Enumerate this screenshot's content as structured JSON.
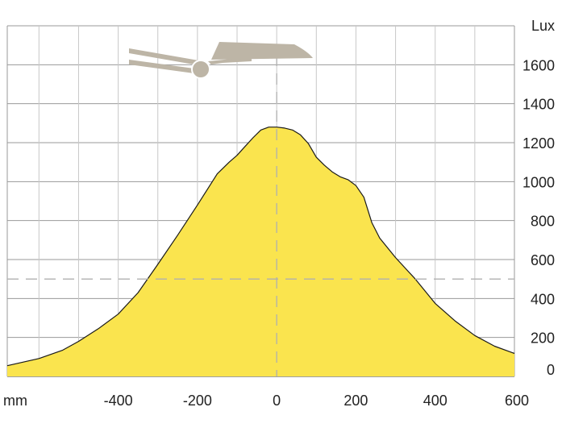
{
  "chart_data": {
    "type": "area",
    "title": "",
    "xlabel": "",
    "ylabel": "",
    "x_unit_label": "mm",
    "y_unit_label": "Lux",
    "xlim": [
      -680,
      600
    ],
    "ylim": [
      0,
      1800
    ],
    "x_ticks": [
      -400,
      -200,
      0,
      200,
      400,
      600
    ],
    "y_ticks": [
      0,
      200,
      400,
      600,
      800,
      1000,
      1200,
      1400,
      1600
    ],
    "grid": true,
    "reference_lines": {
      "x": 0,
      "y": 500
    },
    "series": [
      {
        "x": [
          -680,
          -600,
          -540,
          -500,
          -450,
          -400,
          -350,
          -300,
          -250,
          -200,
          -150,
          -120,
          -100,
          -80,
          -60,
          -40,
          -20,
          0,
          20,
          40,
          60,
          80,
          100,
          120,
          140,
          160,
          180,
          200,
          220,
          240,
          260,
          300,
          350,
          400,
          450,
          500,
          550,
          600
        ],
        "values": [
          55,
          92,
          135,
          180,
          245,
          320,
          430,
          575,
          725,
          880,
          1040,
          1100,
          1135,
          1180,
          1225,
          1265,
          1280,
          1280,
          1275,
          1265,
          1240,
          1195,
          1125,
          1085,
          1050,
          1025,
          1010,
          980,
          920,
          790,
          710,
          610,
          500,
          375,
          285,
          210,
          155,
          118
        ],
        "fill_color": "#FAE44E",
        "line_color": "#1a1a1a"
      }
    ],
    "colors": {
      "area": "#FAE44E",
      "grid": "#999999",
      "dashed": "#b0b0b0",
      "axis_text": "#222222",
      "lamp": "#BDB5A6"
    }
  },
  "decoration": {
    "icon": "street-lamp-icon"
  }
}
